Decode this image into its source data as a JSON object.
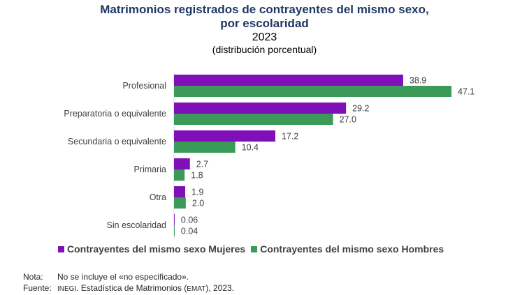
{
  "header": {
    "title_line1": "Matrimonios registrados de contrayentes del mismo sexo,",
    "title_line2": "por escolaridad",
    "year": "2023",
    "unit": "(distribución porcentual)"
  },
  "chart_data": {
    "type": "bar",
    "orientation": "horizontal",
    "categories": [
      "Profesional",
      "Preparatoria o equivalente",
      "Secundaria o equivalente",
      "Primaria",
      "Otra",
      "Sin escolaridad"
    ],
    "series": [
      {
        "name": "Contrayentes del mismo sexo Mujeres",
        "values": [
          38.9,
          29.2,
          17.2,
          2.7,
          1.9,
          0.06
        ],
        "labels": [
          "38.9",
          "29.2",
          "17.2",
          "2.7",
          "1.9",
          "0.06"
        ],
        "color": "#7f0fb8"
      },
      {
        "name": "Contrayentes del mismo sexo Hombres",
        "values": [
          47.1,
          27.0,
          10.4,
          1.8,
          2.0,
          0.04
        ],
        "labels": [
          "47.1",
          "27.0",
          "10.4",
          "1.8",
          "2.0",
          "0.04"
        ],
        "color": "#3b9a57"
      }
    ],
    "xlim": [
      0,
      50
    ],
    "grid": false,
    "legend_position": "bottom"
  },
  "notes": {
    "nota_key": "Nota:",
    "nota_text": "No se incluye el «no especificado».",
    "fuente_key": "Fuente:",
    "fuente_org": "INEGI",
    "fuente_text_1": ". Estadística de Matrimonios (",
    "fuente_abbr": "EMAT",
    "fuente_text_2": "), 2023."
  }
}
